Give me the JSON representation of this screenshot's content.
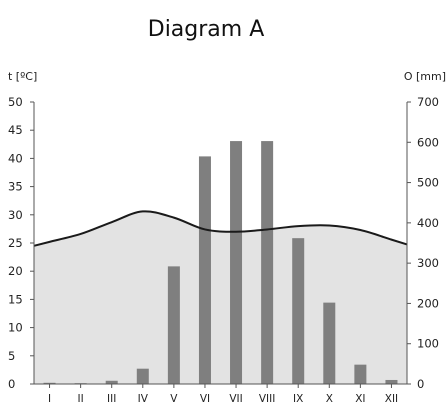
{
  "chart_data": {
    "type": "bar+line",
    "title": "Diagram A",
    "left_axis_label": "t  [ºC]",
    "right_axis_label": "O [mm]",
    "left_ylim": [
      0,
      50
    ],
    "left_ticks": [
      0,
      5,
      10,
      15,
      20,
      25,
      30,
      35,
      40,
      45,
      50
    ],
    "right_ylim": [
      0,
      700
    ],
    "right_ticks": [
      0,
      100,
      200,
      300,
      400,
      500,
      600,
      700
    ],
    "categories": [
      "I",
      "II",
      "III",
      "IV",
      "V",
      "VI",
      "VII",
      "VIII",
      "IX",
      "X",
      "XI",
      "XII"
    ],
    "series": [
      {
        "kind": "bar",
        "axis": "right",
        "values": [
          3,
          2,
          8,
          38,
          292,
          565,
          603,
          603,
          362,
          202,
          48,
          10
        ]
      },
      {
        "kind": "line",
        "axis": "left",
        "values": [
          25.2,
          26.6,
          28.7,
          30.6,
          29.5,
          27.4,
          27.0,
          27.4,
          28.0,
          28.1,
          27.3,
          25.6
        ]
      }
    ],
    "colors": {
      "bar": "#7f7f7f",
      "line": "#1a1a1a",
      "area": "#e3e3e3",
      "axis": "#555555"
    },
    "grid": false
  }
}
